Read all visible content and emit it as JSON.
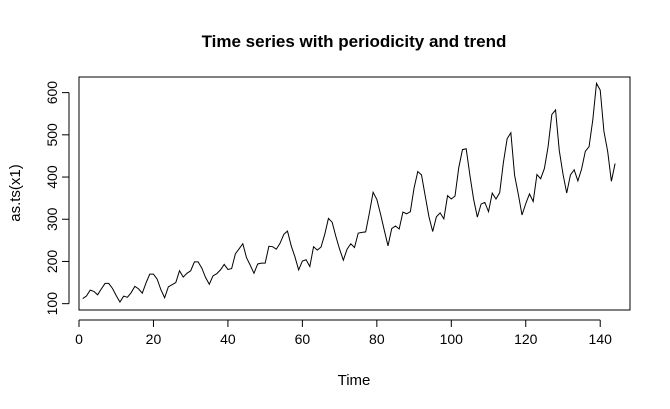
{
  "chart_data": {
    "type": "line",
    "title": "Time series with periodicity and trend",
    "xlabel": "Time",
    "ylabel": "as.ts(x1)",
    "xlim": [
      0,
      148
    ],
    "ylim": [
      85,
      637
    ],
    "xticks": [
      0,
      20,
      40,
      60,
      80,
      100,
      120,
      140
    ],
    "yticks": [
      100,
      200,
      300,
      400,
      500,
      600
    ],
    "grid": false,
    "legend": "none",
    "x": [
      1,
      2,
      3,
      4,
      5,
      6,
      7,
      8,
      9,
      10,
      11,
      12,
      13,
      14,
      15,
      16,
      17,
      18,
      19,
      20,
      21,
      22,
      23,
      24,
      25,
      26,
      27,
      28,
      29,
      30,
      31,
      32,
      33,
      34,
      35,
      36,
      37,
      38,
      39,
      40,
      41,
      42,
      43,
      44,
      45,
      46,
      47,
      48,
      49,
      50,
      51,
      52,
      53,
      54,
      55,
      56,
      57,
      58,
      59,
      60,
      61,
      62,
      63,
      64,
      65,
      66,
      67,
      68,
      69,
      70,
      71,
      72,
      73,
      74,
      75,
      76,
      77,
      78,
      79,
      80,
      81,
      82,
      83,
      84,
      85,
      86,
      87,
      88,
      89,
      90,
      91,
      92,
      93,
      94,
      95,
      96,
      97,
      98,
      99,
      100,
      101,
      102,
      103,
      104,
      105,
      106,
      107,
      108,
      109,
      110,
      111,
      112,
      113,
      114,
      115,
      116,
      117,
      118,
      119,
      120,
      121,
      122,
      123,
      124,
      125,
      126,
      127,
      128,
      129,
      130,
      131,
      132,
      133,
      134,
      135,
      136,
      137,
      138,
      139,
      140,
      141,
      142,
      143,
      144
    ],
    "series": [
      {
        "values": [
          112,
          118,
          132,
          129,
          121,
          135,
          148,
          148,
          136,
          119,
          104,
          118,
          115,
          126,
          141,
          135,
          125,
          149,
          170,
          170,
          158,
          133,
          114,
          140,
          145,
          150,
          178,
          163,
          172,
          178,
          199,
          199,
          184,
          162,
          146,
          166,
          171,
          180,
          193,
          181,
          183,
          218,
          230,
          242,
          209,
          191,
          172,
          194,
          196,
          196,
          236,
          235,
          229,
          243,
          264,
          272,
          237,
          211,
          180,
          201,
          204,
          188,
          235,
          227,
          234,
          264,
          302,
          293,
          259,
          229,
          203,
          229,
          242,
          233,
          267,
          269,
          270,
          315,
          364,
          347,
          312,
          274,
          237,
          278,
          284,
          277,
          317,
          313,
          318,
          374,
          413,
          405,
          355,
          306,
          271,
          306,
          315,
          301,
          356,
          348,
          355,
          422,
          465,
          467,
          404,
          347,
          305,
          336,
          340,
          318,
          362,
          348,
          363,
          435,
          491,
          505,
          404,
          359,
          310,
          337,
          360,
          342,
          406,
          396,
          420,
          472,
          548,
          559,
          463,
          407,
          362,
          405,
          417,
          391,
          419,
          461,
          472,
          535,
          622,
          606,
          508,
          461,
          390,
          432
        ]
      }
    ]
  },
  "colors": {
    "line": "#000000",
    "axis": "#000000",
    "background": "#ffffff"
  }
}
